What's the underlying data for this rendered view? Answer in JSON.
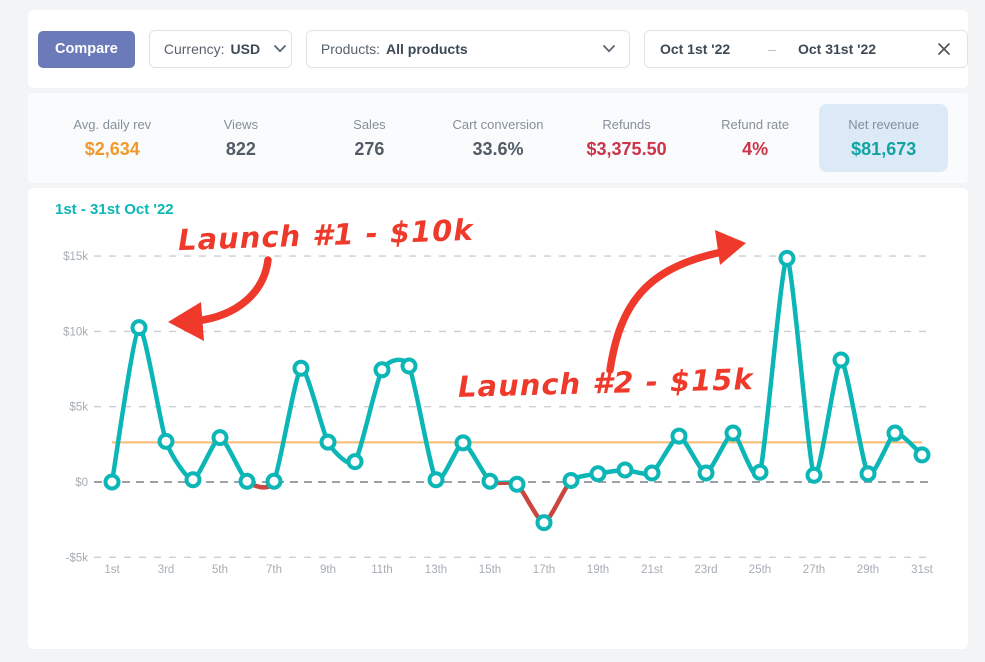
{
  "toolbar": {
    "compare_label": "Compare",
    "currency": {
      "label": "Currency:",
      "value": "USD"
    },
    "products": {
      "label": "Products:",
      "value": "All products"
    },
    "date_range": {
      "start": "Oct 1st '22",
      "separator": "–",
      "end": "Oct 31st '22"
    }
  },
  "stats": [
    {
      "label": "Avg. daily rev",
      "value": "$2,634",
      "color": "#f0992e",
      "highlighted": false
    },
    {
      "label": "Views",
      "value": "822",
      "color": "#515c67",
      "highlighted": false
    },
    {
      "label": "Sales",
      "value": "276",
      "color": "#515c67",
      "highlighted": false
    },
    {
      "label": "Cart conversion",
      "value": "33.6%",
      "color": "#515c67",
      "highlighted": false
    },
    {
      "label": "Refunds",
      "value": "$3,375.50",
      "color": "#cb3449",
      "highlighted": false
    },
    {
      "label": "Refund rate",
      "value": "4%",
      "color": "#cb3449",
      "highlighted": false
    },
    {
      "label": "Net revenue",
      "value": "$81,673",
      "color": "#12a3a3",
      "highlighted": true
    }
  ],
  "chart_data": {
    "type": "line",
    "title": "1st - 31st Oct '22",
    "xlabel": "",
    "ylabel": "",
    "x": [
      1,
      2,
      3,
      4,
      5,
      6,
      7,
      8,
      9,
      10,
      11,
      12,
      13,
      14,
      15,
      16,
      17,
      18,
      19,
      20,
      21,
      22,
      23,
      24,
      25,
      26,
      27,
      28,
      29,
      30,
      31
    ],
    "values": [
      0,
      10250,
      2700,
      150,
      2950,
      50,
      50,
      7550,
      2650,
      1350,
      7450,
      7700,
      150,
      2600,
      50,
      -150,
      -2700,
      100,
      550,
      800,
      600,
      3050,
      600,
      3250,
      650,
      14850,
      450,
      8100,
      550,
      3250,
      1800
    ],
    "average_line": 2634,
    "ylim": [
      -5000,
      15000
    ],
    "grid": true,
    "legend": "none",
    "y_ticks": [
      {
        "value": 15000,
        "label": "$15k"
      },
      {
        "value": 10000,
        "label": "$10k"
      },
      {
        "value": 5000,
        "label": "$5k"
      },
      {
        "value": 0,
        "label": "$0"
      },
      {
        "value": -5000,
        "label": "-$5k"
      }
    ],
    "x_ticks": [
      {
        "day": 1,
        "label": "1st"
      },
      {
        "day": 3,
        "label": "3rd"
      },
      {
        "day": 5,
        "label": "5th"
      },
      {
        "day": 7,
        "label": "7th"
      },
      {
        "day": 9,
        "label": "9th"
      },
      {
        "day": 11,
        "label": "11th"
      },
      {
        "day": 13,
        "label": "13th"
      },
      {
        "day": 15,
        "label": "15th"
      },
      {
        "day": 17,
        "label": "17th"
      },
      {
        "day": 19,
        "label": "19th"
      },
      {
        "day": 21,
        "label": "21st"
      },
      {
        "day": 23,
        "label": "23rd"
      },
      {
        "day": 25,
        "label": "25th"
      },
      {
        "day": 27,
        "label": "27th"
      },
      {
        "day": 29,
        "label": "29th"
      },
      {
        "day": 31,
        "label": "31st"
      }
    ],
    "annotations": [
      {
        "text": "Launch #1 - $10k",
        "points_to_day": 2
      },
      {
        "text": "Launch #2 - $15k",
        "points_to_day": 26
      }
    ],
    "colors": {
      "line": "#0db6b6",
      "below_zero_line": "#c9473f",
      "marker_fill": "#ffffff",
      "average_line": "#f6bb70",
      "grid": "#cbcfd3",
      "zero_grid": "#9aa0a6",
      "axis_text": "#a6adb4",
      "annotation": "#ee392b"
    }
  }
}
